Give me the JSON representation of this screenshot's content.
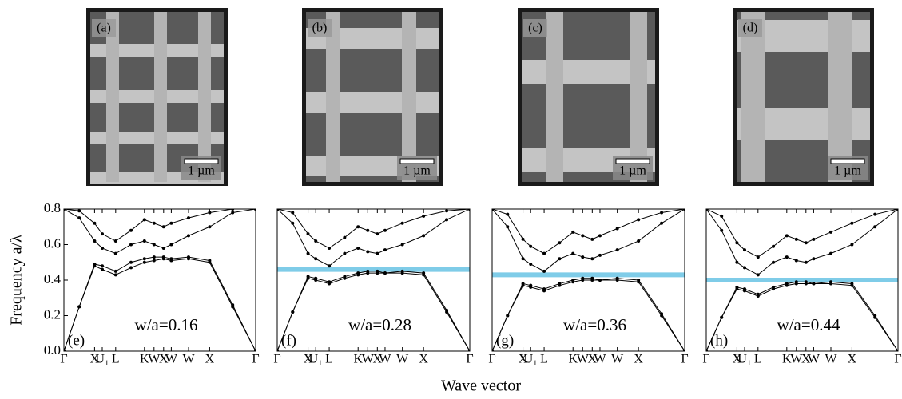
{
  "figure": {
    "y_label": "Frequency a/λ",
    "x_label": "Wave vector"
  },
  "images": [
    {
      "label": "(a)",
      "scale_bar": "1 µm"
    },
    {
      "label": "(b)",
      "scale_bar": "1 µm"
    },
    {
      "label": "(c)",
      "scale_bar": "1 µm"
    },
    {
      "label": "(d)",
      "scale_bar": "1 µm"
    }
  ],
  "chart_data": [
    {
      "type": "line",
      "label": "(e)",
      "annotation": "w/a=0.16",
      "x": [
        0,
        0.08,
        0.16,
        0.2,
        0.27,
        0.35,
        0.42,
        0.47,
        0.52,
        0.56,
        0.65,
        0.76,
        0.88,
        1
      ],
      "xlim": [
        0,
        1
      ],
      "ylim": [
        0,
        0.8
      ],
      "xticks": [
        {
          "value": 0,
          "label": "Γ"
        },
        {
          "value": 0.16,
          "label": "X"
        },
        {
          "value": 0.2,
          "label": "U₁"
        },
        {
          "value": 0.27,
          "label": "L"
        },
        {
          "value": 0.42,
          "label": "K"
        },
        {
          "value": 0.47,
          "label": "W"
        },
        {
          "value": 0.52,
          "label": "X"
        },
        {
          "value": 0.56,
          "label": "W"
        },
        {
          "value": 0.65,
          "label": "W"
        },
        {
          "value": 0.76,
          "label": "X"
        },
        {
          "value": 1,
          "label": "Γ"
        }
      ],
      "yticks": [
        {
          "value": 0,
          "label": "0.0"
        },
        0.2,
        0.4,
        0.6,
        0.8
      ],
      "series": [
        {
          "color": "#000000",
          "values": [
            0,
            0.25,
            0.48,
            0.46,
            0.43,
            0.47,
            0.5,
            0.51,
            0.52,
            0.51,
            0.52,
            0.5,
            0.25,
            0
          ]
        },
        {
          "color": "#000000",
          "values": [
            0,
            0.25,
            0.49,
            0.48,
            0.45,
            0.5,
            0.52,
            0.53,
            0.53,
            0.52,
            0.53,
            0.51,
            0.26,
            0
          ]
        },
        {
          "color": "#000000",
          "values": [
            0.8,
            0.75,
            0.62,
            0.58,
            0.55,
            0.6,
            0.62,
            0.6,
            0.58,
            0.6,
            0.65,
            0.7,
            0.78,
            0.8
          ]
        },
        {
          "color": "#000000",
          "values": [
            0.8,
            0.79,
            0.72,
            0.66,
            0.62,
            0.68,
            0.74,
            0.72,
            0.7,
            0.72,
            0.75,
            0.78,
            0.8,
            0.8
          ]
        }
      ]
    },
    {
      "type": "line",
      "label": "(f)",
      "annotation": "w/a=0.28",
      "x": [
        0,
        0.08,
        0.16,
        0.2,
        0.27,
        0.35,
        0.42,
        0.47,
        0.52,
        0.56,
        0.65,
        0.76,
        0.88,
        1
      ],
      "xlim": [
        0,
        1
      ],
      "ylim": [
        0,
        0.8
      ],
      "xticks": [
        {
          "value": 0,
          "label": "Γ"
        },
        {
          "value": 0.16,
          "label": "X"
        },
        {
          "value": 0.2,
          "label": "U₁"
        },
        {
          "value": 0.27,
          "label": "L"
        },
        {
          "value": 0.42,
          "label": "K"
        },
        {
          "value": 0.47,
          "label": "W"
        },
        {
          "value": 0.52,
          "label": "X"
        },
        {
          "value": 0.56,
          "label": "W"
        },
        {
          "value": 0.65,
          "label": "W"
        },
        {
          "value": 0.76,
          "label": "X"
        },
        {
          "value": 1,
          "label": "Γ"
        }
      ],
      "gap": 0.46,
      "gap_color": "#7fcce8",
      "series": [
        {
          "color": "#000000",
          "values": [
            0,
            0.22,
            0.41,
            0.4,
            0.38,
            0.41,
            0.43,
            0.44,
            0.44,
            0.44,
            0.44,
            0.43,
            0.22,
            0
          ]
        },
        {
          "color": "#000000",
          "values": [
            0,
            0.22,
            0.42,
            0.41,
            0.39,
            0.42,
            0.44,
            0.45,
            0.45,
            0.44,
            0.45,
            0.44,
            0.23,
            0
          ]
        },
        {
          "color": "#000000",
          "values": [
            0.8,
            0.72,
            0.55,
            0.52,
            0.48,
            0.55,
            0.58,
            0.56,
            0.55,
            0.57,
            0.6,
            0.65,
            0.74,
            0.8
          ]
        },
        {
          "color": "#000000",
          "values": [
            0.8,
            0.78,
            0.66,
            0.62,
            0.58,
            0.64,
            0.7,
            0.68,
            0.66,
            0.68,
            0.72,
            0.76,
            0.79,
            0.8
          ]
        }
      ]
    },
    {
      "type": "line",
      "label": "(g)",
      "annotation": "w/a=0.36",
      "x": [
        0,
        0.08,
        0.16,
        0.2,
        0.27,
        0.35,
        0.42,
        0.47,
        0.52,
        0.56,
        0.65,
        0.76,
        0.88,
        1
      ],
      "xlim": [
        0,
        1
      ],
      "ylim": [
        0,
        0.8
      ],
      "xticks": [
        {
          "value": 0,
          "label": "Γ"
        },
        {
          "value": 0.16,
          "label": "X"
        },
        {
          "value": 0.2,
          "label": "U₁"
        },
        {
          "value": 0.27,
          "label": "L"
        },
        {
          "value": 0.42,
          "label": "K"
        },
        {
          "value": 0.47,
          "label": "W"
        },
        {
          "value": 0.52,
          "label": "X"
        },
        {
          "value": 0.56,
          "label": "W"
        },
        {
          "value": 0.65,
          "label": "W"
        },
        {
          "value": 0.76,
          "label": "X"
        },
        {
          "value": 1,
          "label": "Γ"
        }
      ],
      "gap": 0.43,
      "gap_color": "#7fcce8",
      "series": [
        {
          "color": "#000000",
          "values": [
            0,
            0.2,
            0.37,
            0.36,
            0.34,
            0.37,
            0.39,
            0.4,
            0.4,
            0.4,
            0.4,
            0.39,
            0.2,
            0
          ]
        },
        {
          "color": "#000000",
          "values": [
            0,
            0.2,
            0.38,
            0.37,
            0.35,
            0.38,
            0.4,
            0.41,
            0.41,
            0.4,
            0.41,
            0.4,
            0.21,
            0
          ]
        },
        {
          "color": "#000000",
          "values": [
            0.8,
            0.7,
            0.52,
            0.49,
            0.45,
            0.52,
            0.55,
            0.53,
            0.52,
            0.54,
            0.57,
            0.62,
            0.72,
            0.8
          ]
        },
        {
          "color": "#000000",
          "values": [
            0.8,
            0.77,
            0.63,
            0.59,
            0.55,
            0.61,
            0.67,
            0.65,
            0.63,
            0.65,
            0.69,
            0.74,
            0.78,
            0.8
          ]
        }
      ]
    },
    {
      "type": "line",
      "label": "(h)",
      "annotation": "w/a=0.44",
      "x": [
        0,
        0.08,
        0.16,
        0.2,
        0.27,
        0.35,
        0.42,
        0.47,
        0.52,
        0.56,
        0.65,
        0.76,
        0.88,
        1
      ],
      "xlim": [
        0,
        1
      ],
      "ylim": [
        0,
        0.8
      ],
      "xticks": [
        {
          "value": 0,
          "label": "Γ"
        },
        {
          "value": 0.16,
          "label": "X"
        },
        {
          "value": 0.2,
          "label": "U₁"
        },
        {
          "value": 0.27,
          "label": "L"
        },
        {
          "value": 0.42,
          "label": "K"
        },
        {
          "value": 0.47,
          "label": "W"
        },
        {
          "value": 0.52,
          "label": "X"
        },
        {
          "value": 0.56,
          "label": "W"
        },
        {
          "value": 0.65,
          "label": "W"
        },
        {
          "value": 0.76,
          "label": "X"
        },
        {
          "value": 1,
          "label": "Γ"
        }
      ],
      "gap": 0.4,
      "gap_color": "#7fcce8",
      "series": [
        {
          "color": "#000000",
          "values": [
            0,
            0.19,
            0.35,
            0.34,
            0.31,
            0.35,
            0.37,
            0.38,
            0.38,
            0.38,
            0.38,
            0.37,
            0.19,
            0
          ]
        },
        {
          "color": "#000000",
          "values": [
            0,
            0.19,
            0.36,
            0.35,
            0.32,
            0.36,
            0.38,
            0.39,
            0.39,
            0.38,
            0.39,
            0.38,
            0.2,
            0
          ]
        },
        {
          "color": "#000000",
          "values": [
            0.8,
            0.68,
            0.5,
            0.47,
            0.43,
            0.5,
            0.53,
            0.51,
            0.5,
            0.52,
            0.55,
            0.6,
            0.7,
            0.8
          ]
        },
        {
          "color": "#000000",
          "values": [
            0.8,
            0.76,
            0.61,
            0.57,
            0.53,
            0.59,
            0.65,
            0.63,
            0.61,
            0.63,
            0.67,
            0.72,
            0.77,
            0.8
          ]
        }
      ]
    }
  ]
}
